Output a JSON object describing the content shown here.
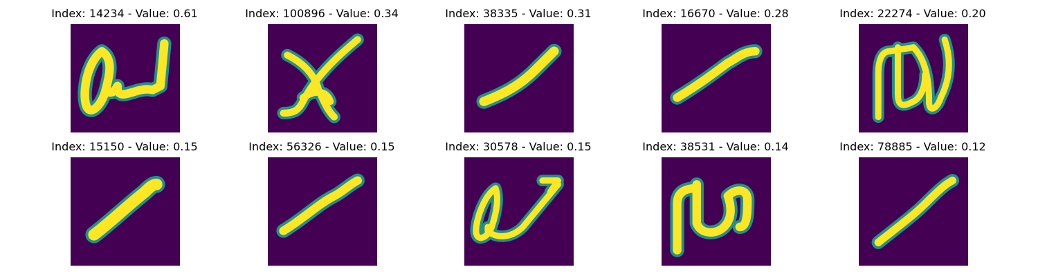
{
  "chart_data": {
    "type": "image_grid",
    "colormap": "viridis",
    "rows": 2,
    "cols": 5,
    "panels": [
      {
        "index": 14234,
        "value": 0.61,
        "title": "Index: 14234 - Value: 0.61",
        "glyph": "a-ligature"
      },
      {
        "index": 100896,
        "value": 0.34,
        "title": "Index: 100896 - Value: 0.34",
        "glyph": "cross-squiggle"
      },
      {
        "index": 38335,
        "value": 0.31,
        "title": "Index: 38335 - Value: 0.31",
        "glyph": "diagonal-stroke"
      },
      {
        "index": 16670,
        "value": 0.28,
        "title": "Index: 16670 - Value: 0.28",
        "glyph": "diagonal-stroke"
      },
      {
        "index": 22274,
        "value": 0.2,
        "title": "Index: 22274 - Value: 0.20",
        "glyph": "pi-loop"
      },
      {
        "index": 15150,
        "value": 0.15,
        "title": "Index: 15150 - Value: 0.15",
        "glyph": "thick-diagonal"
      },
      {
        "index": 56326,
        "value": 0.15,
        "title": "Index: 56326 - Value: 0.15",
        "glyph": "diagonal-stroke"
      },
      {
        "index": 30578,
        "value": 0.15,
        "title": "Index: 30578 - Value: 0.15",
        "glyph": "a-ligature"
      },
      {
        "index": 38531,
        "value": 0.14,
        "title": "Index: 38531 - Value: 0.14",
        "glyph": "n-loop"
      },
      {
        "index": 78885,
        "value": 0.12,
        "title": "Index: 78885 - Value: 0.12",
        "glyph": "diagonal-stroke"
      }
    ]
  }
}
